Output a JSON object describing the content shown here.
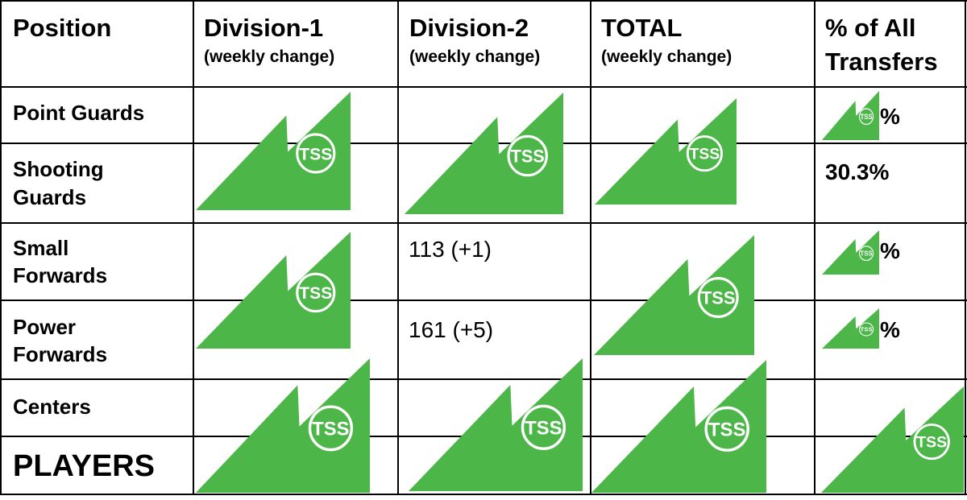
{
  "table": {
    "headers": {
      "position": "Position",
      "div1_title": "Division-1",
      "div1_sub": "(weekly change)",
      "div2_title": "Division-2",
      "div2_sub": "(weekly change)",
      "total_title": "TOTAL",
      "total_sub": "(weekly change)",
      "pct_line1": "% of All",
      "pct_line2": "Transfers"
    },
    "rows": {
      "point_guards": "Point Guards",
      "shooting_guards_1": "Shooting",
      "shooting_guards_2": "Guards",
      "small_forwards_1": "Small",
      "small_forwards_2": "Forwards",
      "power_forwards_1": "Power",
      "power_forwards_2": "Forwards",
      "centers": "Centers",
      "players": "PLAYERS"
    },
    "values": {
      "small_forwards_div2": "113 (+1)",
      "power_forwards_div2": "161 (+5)",
      "shooting_guards_pct": "30.3%",
      "point_guards_pct_suffix": "%",
      "small_forwards_pct_suffix": "%",
      "power_forwards_pct_suffix": "%"
    },
    "watermark": {
      "text": "TSS",
      "icon": "tss-logo-icon",
      "color": "#4cb648"
    }
  }
}
